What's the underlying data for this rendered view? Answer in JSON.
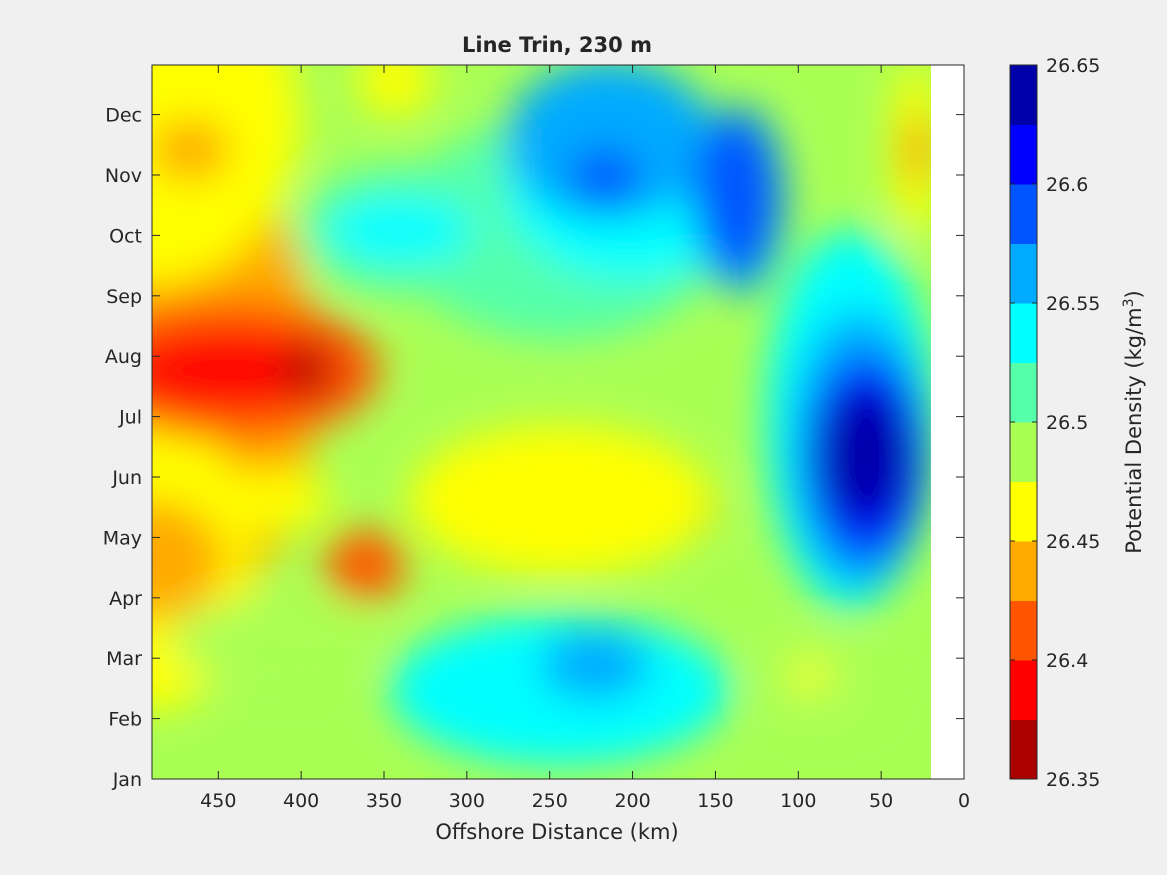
{
  "chart_data": {
    "type": "heatmap",
    "subtype": "filled-contour",
    "title": "Line Trin, 230 m",
    "xlabel": "Offshore Distance (km)",
    "ylabel": "",
    "xlim": [
      490,
      0
    ],
    "x_reversed": true,
    "x_ticks": [
      450,
      400,
      350,
      300,
      250,
      200,
      150,
      100,
      50,
      0
    ],
    "y_ticks": [
      "Jan",
      "Feb",
      "Mar",
      "Apr",
      "May",
      "Jun",
      "Jul",
      "Aug",
      "Sep",
      "Oct",
      "Nov",
      "Dec"
    ],
    "data_x_range_km": [
      490,
      20
    ],
    "colorbar": {
      "label_main": "Potential Density (kg/m",
      "label_sup": "3",
      "label_end": ")",
      "ticks": [
        "26.35",
        "26.4",
        "26.45",
        "26.5",
        "26.55",
        "26.6",
        "26.65"
      ],
      "range": [
        26.35,
        26.65
      ],
      "levels": [
        26.35,
        26.375,
        26.4,
        26.425,
        26.45,
        26.475,
        26.5,
        26.525,
        26.55,
        26.575,
        26.6,
        26.625,
        26.65
      ],
      "colors": [
        "#aa0000",
        "#ff0000",
        "#ff5500",
        "#ffaa00",
        "#ffff00",
        "#aaff55",
        "#55ffaa",
        "#00ffff",
        "#00aaff",
        "#0055ff",
        "#0000ff",
        "#0000aa"
      ]
    },
    "grid": false,
    "legend": "colorbar-right"
  }
}
